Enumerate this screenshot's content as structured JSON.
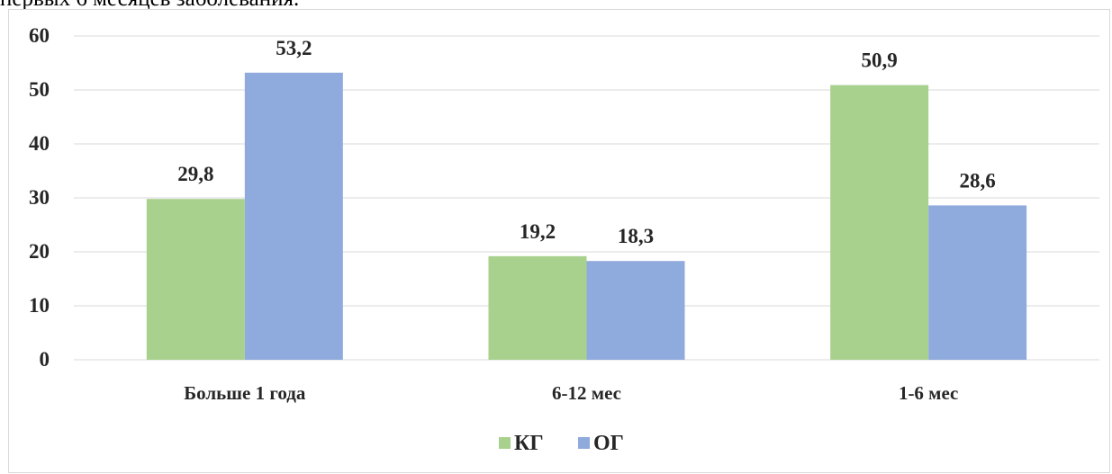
{
  "top_text": "первых 6 месяцев заболевания.",
  "colors": {
    "series_kg": "#a9d18e",
    "series_og": "#8faadc",
    "gridline": "#d9d9d9",
    "text": "#262626"
  },
  "chart_data": {
    "type": "bar",
    "title": "",
    "xlabel": "",
    "ylabel": "",
    "categories": [
      "Больше 1 года",
      "6-12 мес",
      "1-6 мес"
    ],
    "series": [
      {
        "name": "КГ",
        "values": [
          29.8,
          19.2,
          50.9
        ],
        "labels": [
          "29,8",
          "19,2",
          "50,9"
        ]
      },
      {
        "name": "ОГ",
        "values": [
          53.2,
          18.3,
          28.6
        ],
        "labels": [
          "53,2",
          "18,3",
          "28,6"
        ]
      }
    ],
    "ylim": [
      0,
      60
    ],
    "yticks": [
      0,
      10,
      20,
      30,
      40,
      50,
      60
    ],
    "grid": true,
    "legend": "bottom"
  }
}
